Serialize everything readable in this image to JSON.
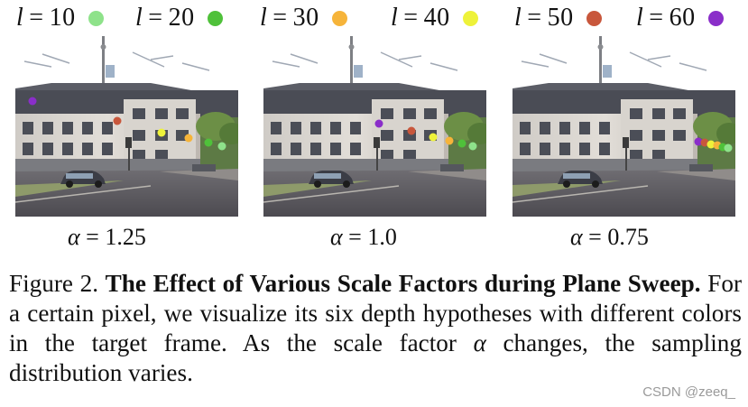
{
  "legend": [
    {
      "var": "l",
      "eq": "=",
      "value": "10",
      "color": "#8ee28a"
    },
    {
      "var": "l",
      "eq": "=",
      "value": "20",
      "color": "#4fc13a"
    },
    {
      "var": "l",
      "eq": "=",
      "value": "30",
      "color": "#f6b43a"
    },
    {
      "var": "l",
      "eq": "=",
      "value": "40",
      "color": "#eef23a"
    },
    {
      "var": "l",
      "eq": "=",
      "value": "50",
      "color": "#c8573c"
    },
    {
      "var": "l",
      "eq": "=",
      "value": "60",
      "color": "#8a2ec9"
    }
  ],
  "panels": [
    {
      "alpha_symbol": "α",
      "eq": "=",
      "alpha_value": "1.25"
    },
    {
      "alpha_symbol": "α",
      "eq": "=",
      "alpha_value": "1.0"
    },
    {
      "alpha_symbol": "α",
      "eq": "=",
      "alpha_value": "0.75"
    }
  ],
  "caption": {
    "prefix": "Figure 2. ",
    "title": "The Effect of Various Scale Factors during Plane Sweep.",
    "body_part1": " For a certain pixel, we visualize its six depth hypotheses with different colors in the target frame. As the scale factor ",
    "alpha": "α",
    "body_part2": " changes, the sampling distribution varies."
  },
  "watermark": "CSDN @zeeq_"
}
